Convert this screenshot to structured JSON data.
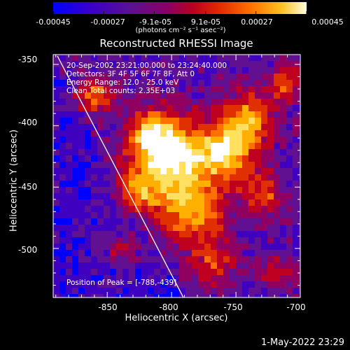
{
  "colorbar": {
    "ticks": [
      "-0.00045",
      "-0.00027",
      "-9.1e-05",
      "9.1e-05",
      "0.00027",
      "0.00045"
    ],
    "tick_values": [
      -0.00045,
      -0.00027,
      -9.1e-05,
      9.1e-05,
      0.00027,
      0.00045
    ],
    "range": [
      -0.00045,
      0.00045
    ],
    "unit_text": "(photons cm⁻² s⁻¹ asec⁻²)",
    "colors": [
      "#0000ff",
      "#4000c0",
      "#601090",
      "#900060",
      "#c00020",
      "#e03000",
      "#ff7000",
      "#ffb000",
      "#ffe060",
      "#ffffff"
    ]
  },
  "title": "Reconstructed RHESSI Image",
  "annotations": {
    "line1": "20-Sep-2002 23:21:00.000 to 23:24:40.000",
    "line2": "Detectors: 3F 4F 5F 6F 7F 8F, Att 0",
    "line3": "Energy Range: 12.0 - 25.0 keV",
    "line4": "Clean    Total counts: 2.35E+03",
    "peak": "Position of Peak = [-788,-439]"
  },
  "axes": {
    "xlabel": "Heliocentric X (arcsec)",
    "ylabel": "Heliocentric Y (arcsec)",
    "xticks": [
      "-850",
      "-800",
      "-750",
      "-700"
    ],
    "xtick_values": [
      -850,
      -800,
      -750,
      -700
    ],
    "yticks": [
      "-350",
      "-400",
      "-450",
      "-500"
    ],
    "ytick_values": [
      -350,
      -400,
      -450,
      -500
    ],
    "xlim": [
      -892,
      -700
    ],
    "ylim": [
      -540,
      -342
    ]
  },
  "timestamp": "1-May-2022 23:29"
}
